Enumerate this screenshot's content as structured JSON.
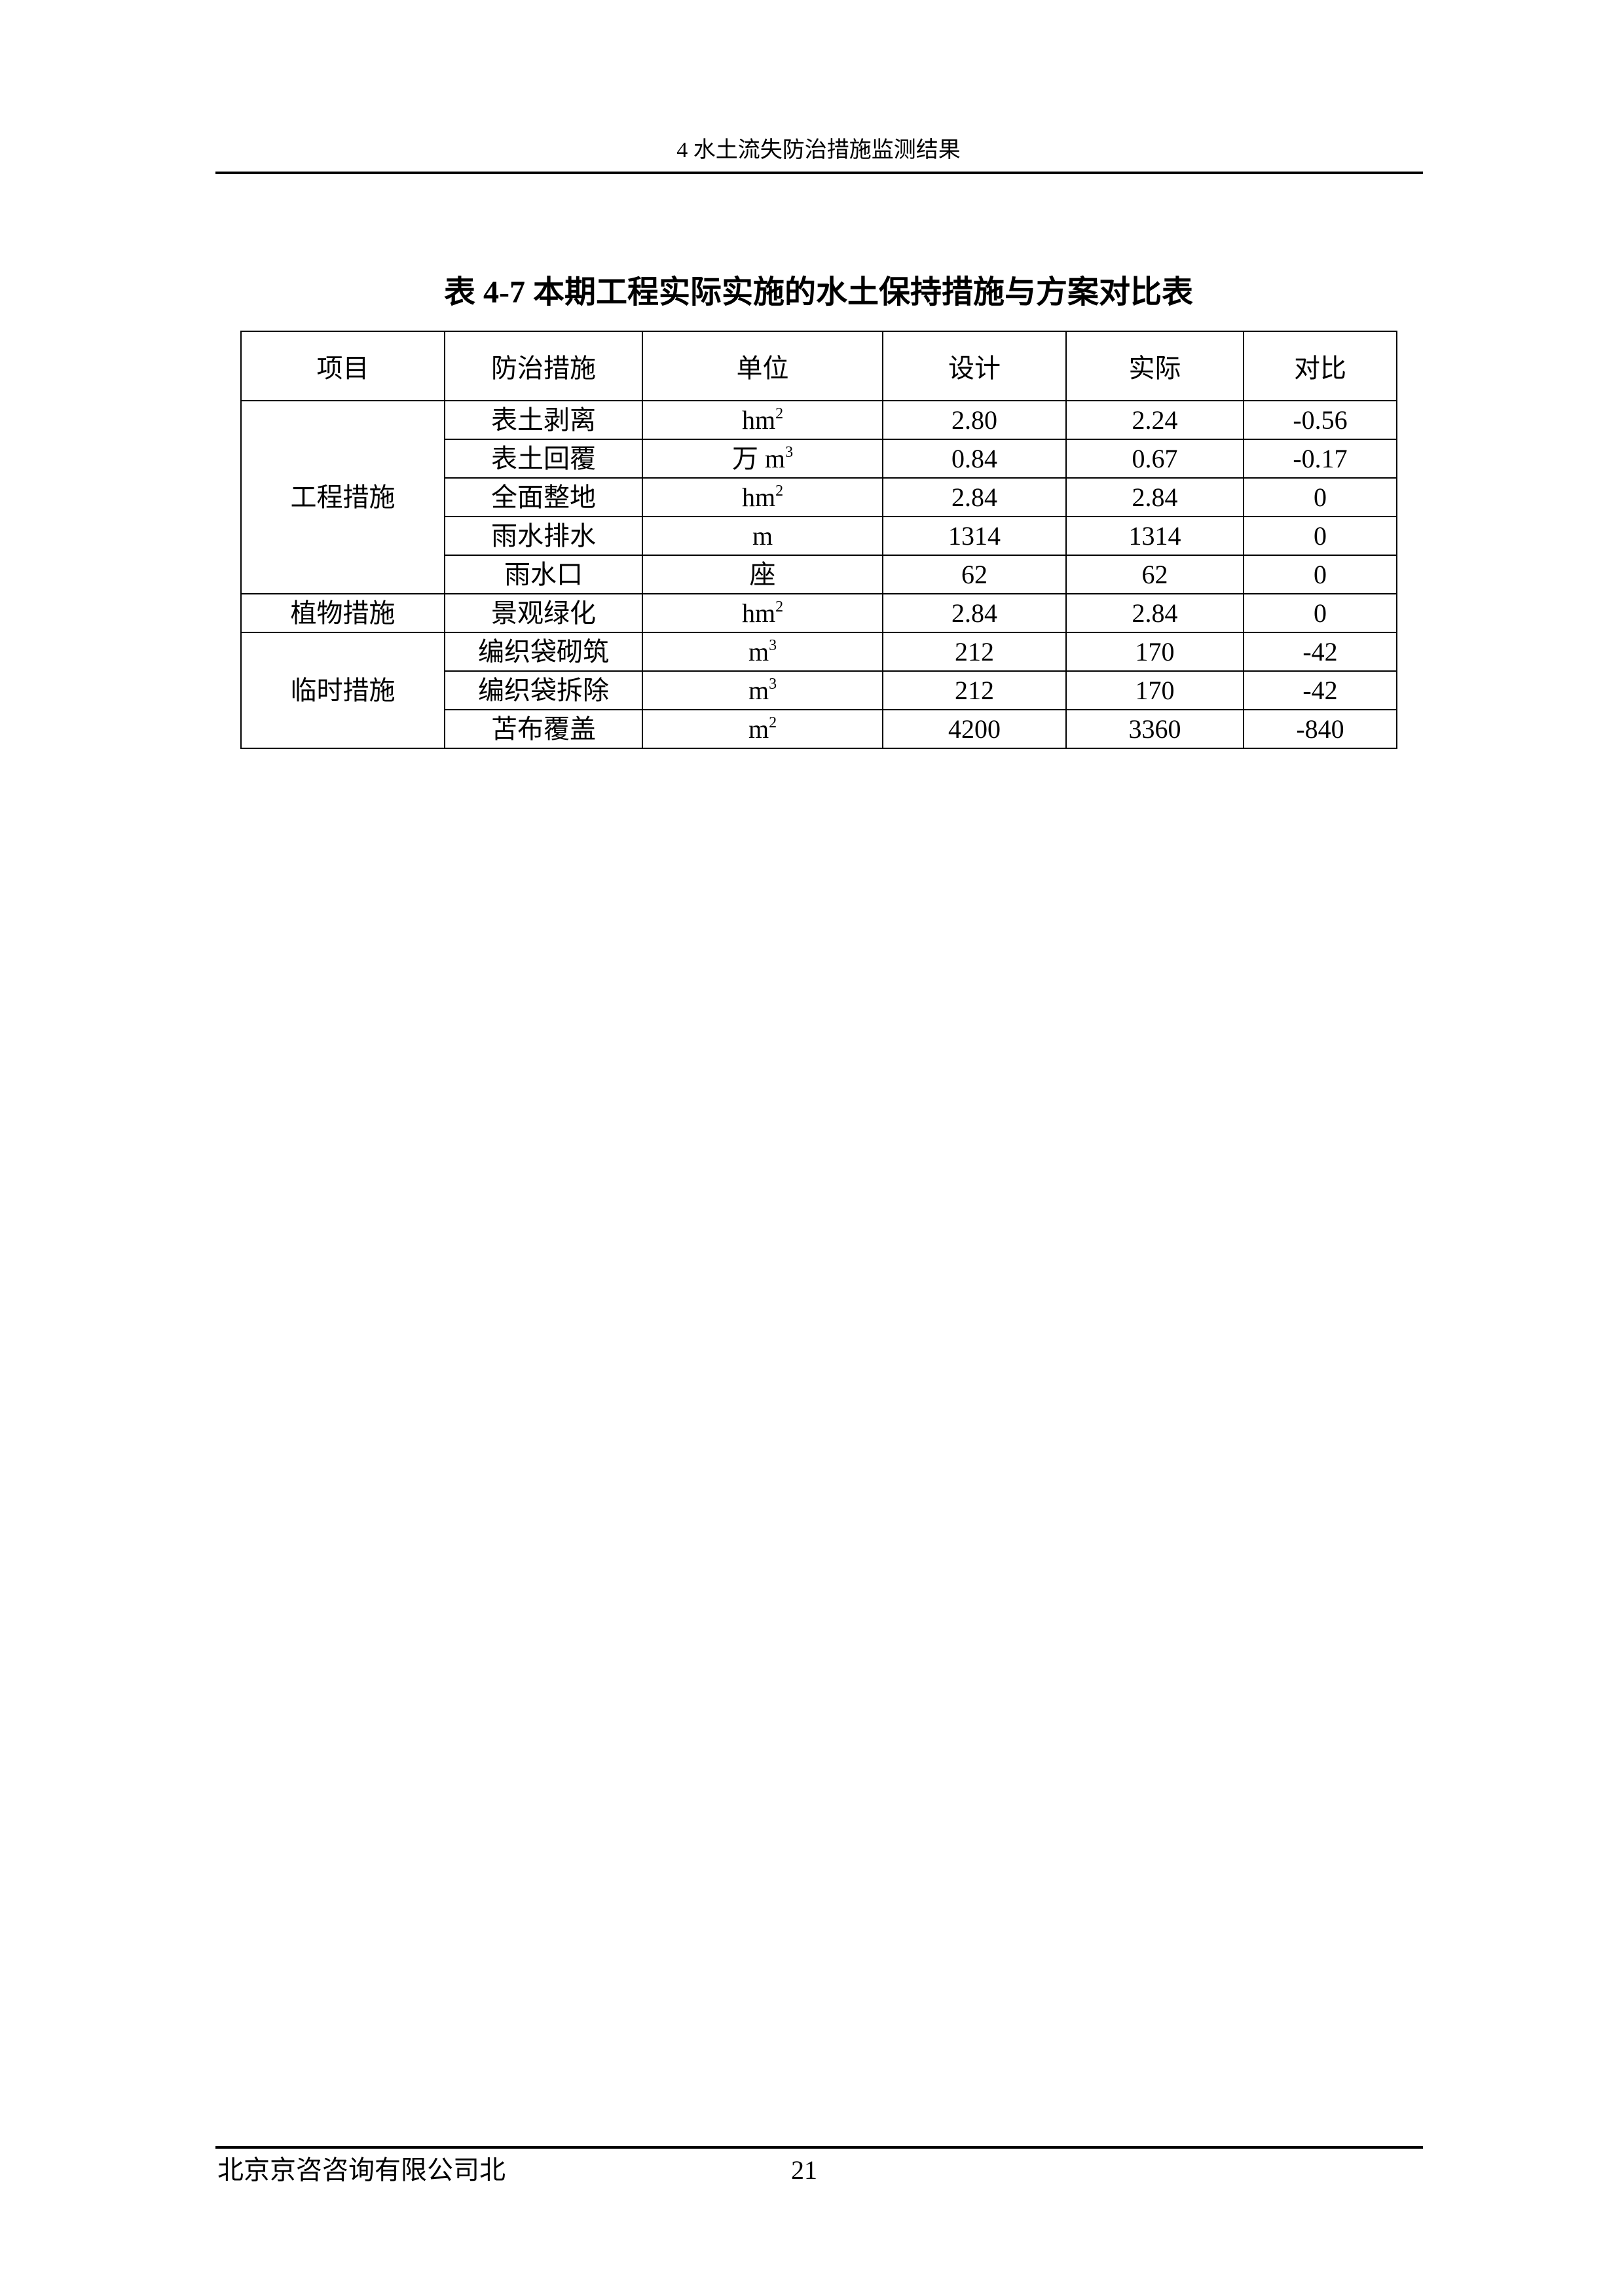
{
  "header": {
    "running_title": "4  水土流失防治措施监测结果"
  },
  "table": {
    "title": "表 4-7    本期工程实际实施的水土保持措施与方案对比表",
    "columns": [
      "项目",
      "防治措施",
      "单位",
      "设计",
      "实际",
      "对比"
    ],
    "groups": [
      {
        "name": "工程措施",
        "rows": [
          {
            "measure": "表土剥离",
            "unit": "hm",
            "unit_sup": "2",
            "design": "2.80",
            "actual": "2.24",
            "diff": "-0.56"
          },
          {
            "measure": "表土回覆",
            "unit": "万 m",
            "unit_sup": "3",
            "design": "0.84",
            "actual": "0.67",
            "diff": "-0.17"
          },
          {
            "measure": "全面整地",
            "unit": "hm",
            "unit_sup": "2",
            "design": "2.84",
            "actual": "2.84",
            "diff": "0"
          },
          {
            "measure": "雨水排水",
            "unit": "m",
            "unit_sup": "",
            "design": "1314",
            "actual": "1314",
            "diff": "0"
          },
          {
            "measure": "雨水口",
            "unit": "座",
            "unit_sup": "",
            "design": "62",
            "actual": "62",
            "diff": "0"
          }
        ]
      },
      {
        "name": "植物措施",
        "rows": [
          {
            "measure": "景观绿化",
            "unit": "hm",
            "unit_sup": "2",
            "design": "2.84",
            "actual": "2.84",
            "diff": "0"
          }
        ]
      },
      {
        "name": "临时措施",
        "rows": [
          {
            "measure": "编织袋砌筑",
            "unit": "m",
            "unit_sup": "3",
            "design": "212",
            "actual": "170",
            "diff": "-42"
          },
          {
            "measure": "编织袋拆除",
            "unit": "m",
            "unit_sup": "3",
            "design": "212",
            "actual": "170",
            "diff": "-42"
          },
          {
            "measure": "苫布覆盖",
            "unit": "m",
            "unit_sup": "2",
            "design": "4200",
            "actual": "3360",
            "diff": "-840"
          }
        ]
      }
    ]
  },
  "footer": {
    "company": "北京京咨咨询有限公司北",
    "page_number": "21"
  }
}
